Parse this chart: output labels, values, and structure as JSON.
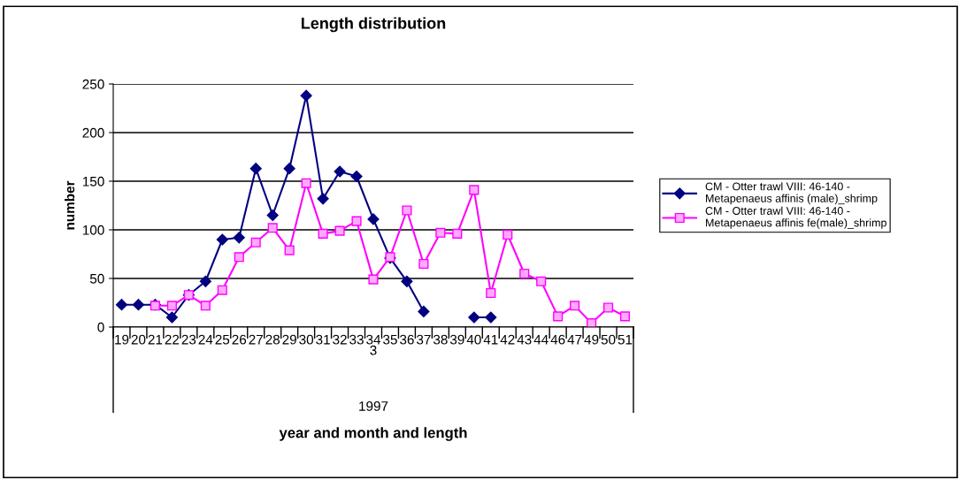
{
  "chart_data": {
    "type": "line",
    "title": "Length distribution",
    "ylabel": "number",
    "categories": [
      "19",
      "20",
      "21",
      "22",
      "23",
      "24",
      "25",
      "26",
      "27",
      "28",
      "29",
      "30",
      "31",
      "32",
      "33",
      "34",
      "35",
      "36",
      "37",
      "38",
      "39",
      "40",
      "41",
      "42",
      "43",
      "44",
      "46",
      "47",
      "49",
      "50",
      "51"
    ],
    "annotations": [
      "3",
      "1997",
      "year and month and length"
    ],
    "series": [
      {
        "name": "CM - Otter trawl VIII: 46-140 -\nMetapenaeus affinis (male)_shrimp",
        "color": "#000080",
        "marker": "diamond",
        "values": [
          23,
          23,
          23,
          10,
          33,
          47,
          90,
          92,
          163,
          115,
          163,
          238,
          132,
          160,
          155,
          111,
          71,
          47,
          16,
          null,
          null,
          10,
          10,
          null,
          null,
          null,
          null,
          null,
          null,
          null,
          null
        ]
      },
      {
        "name": "CM - Otter trawl VIII: 46-140 -\nMetapenaeus affinis fe(male)_shrimp",
        "color": "#ff00ff",
        "marker": "square",
        "values": [
          null,
          null,
          22,
          22,
          33,
          22,
          38,
          72,
          87,
          102,
          79,
          148,
          96,
          99,
          109,
          49,
          72,
          120,
          65,
          97,
          96,
          141,
          35,
          95,
          55,
          47,
          11,
          22,
          4,
          20,
          11
        ]
      }
    ],
    "ylim": [
      0,
      250
    ],
    "yticks": [
      0,
      50,
      100,
      150,
      200,
      250
    ],
    "grid": "y",
    "legend": "right"
  }
}
